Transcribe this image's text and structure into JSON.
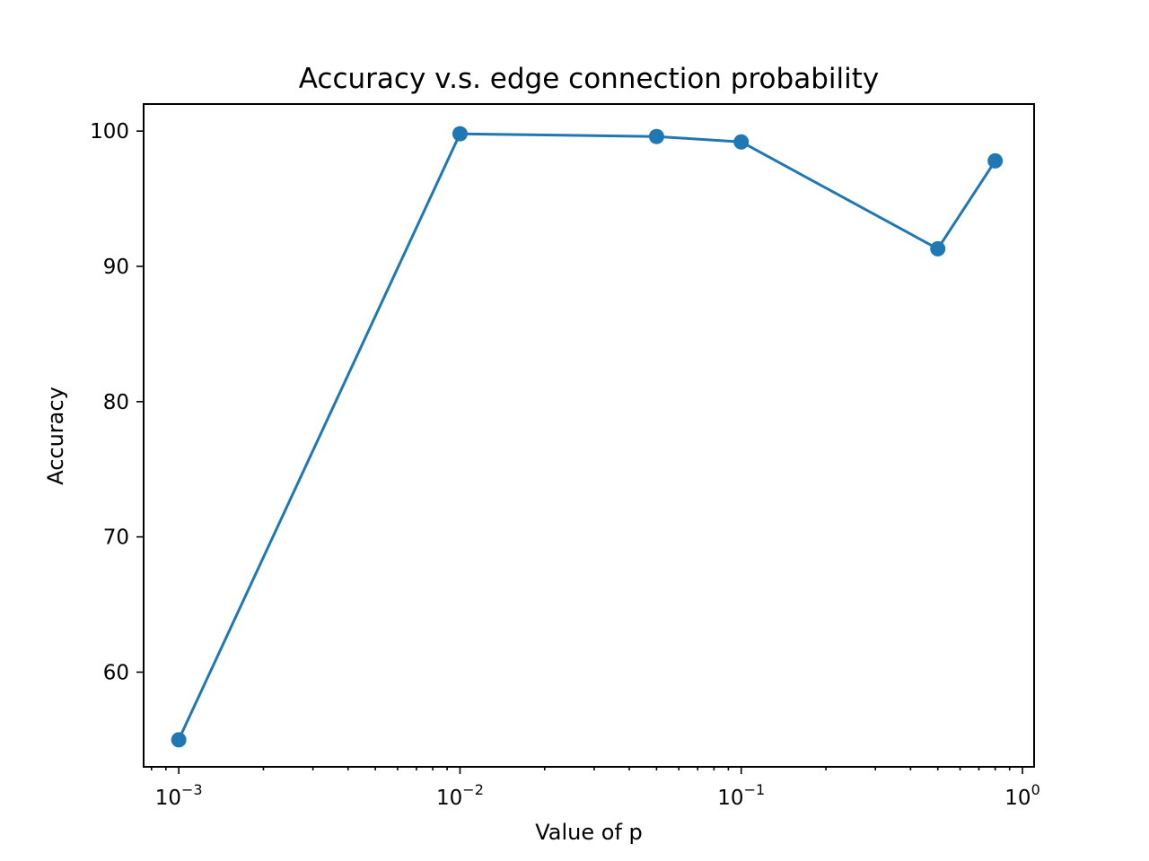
{
  "chart_data": {
    "type": "line",
    "title": "Accuracy v.s. edge connection probability",
    "xlabel": "Value of p",
    "ylabel": "Accuracy",
    "xscale": "log",
    "xlim": [
      0.00075,
      1.1
    ],
    "ylim": [
      53,
      102
    ],
    "grid": false,
    "legend": "none",
    "x_ticks": [
      {
        "value": 0.001,
        "base": "10",
        "exp": "−3"
      },
      {
        "value": 0.01,
        "base": "10",
        "exp": "−2"
      },
      {
        "value": 0.1,
        "base": "10",
        "exp": "−1"
      },
      {
        "value": 1,
        "base": "10",
        "exp": "0"
      }
    ],
    "y_ticks": [
      60,
      70,
      80,
      90,
      100
    ],
    "series": [
      {
        "color": "#1f77b4",
        "marker": "circle",
        "x": [
          0.001,
          0.01,
          0.05,
          0.1,
          0.5,
          0.8
        ],
        "y": [
          55.0,
          99.8,
          99.6,
          99.2,
          91.3,
          97.8
        ]
      }
    ]
  }
}
